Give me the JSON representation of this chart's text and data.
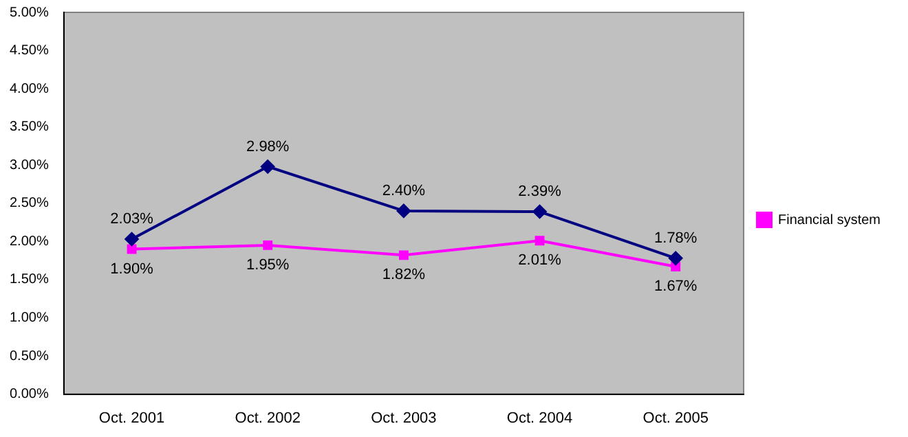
{
  "chart_data": {
    "type": "line",
    "categories": [
      "Oct. 2001",
      "Oct. 2002",
      "Oct. 2003",
      "Oct. 2004",
      "Oct. 2005"
    ],
    "series": [
      {
        "color": "#000080",
        "marker": "diamond",
        "values": [
          2.03,
          2.98,
          2.4,
          2.39,
          1.78
        ],
        "value_labels": [
          "2.03%",
          "2.98%",
          "2.40%",
          "2.39%",
          "1.78%"
        ]
      },
      {
        "name": "Financial system",
        "color": "#ff00ff",
        "marker": "square",
        "values": [
          1.9,
          1.95,
          1.82,
          2.01,
          1.67
        ],
        "value_labels": [
          "1.90%",
          "1.95%",
          "1.82%",
          "2.01%",
          "1.67%"
        ]
      }
    ],
    "ylim": [
      0,
      5
    ],
    "yticks": [
      {
        "value": 0,
        "label": "0.00%"
      },
      {
        "value": 0.5,
        "label": "0.50%"
      },
      {
        "value": 1,
        "label": "1.00%"
      },
      {
        "value": 1.5,
        "label": "1.50%"
      },
      {
        "value": 2,
        "label": "2.00%"
      },
      {
        "value": 2.5,
        "label": "2.50%"
      },
      {
        "value": 3,
        "label": "3.00%"
      },
      {
        "value": 3.5,
        "label": "3.50%"
      },
      {
        "value": 4,
        "label": "4.00%"
      },
      {
        "value": 4.5,
        "label": "4.50%"
      },
      {
        "value": 5,
        "label": "5.00%"
      }
    ],
    "grid": false,
    "legend": "right"
  }
}
